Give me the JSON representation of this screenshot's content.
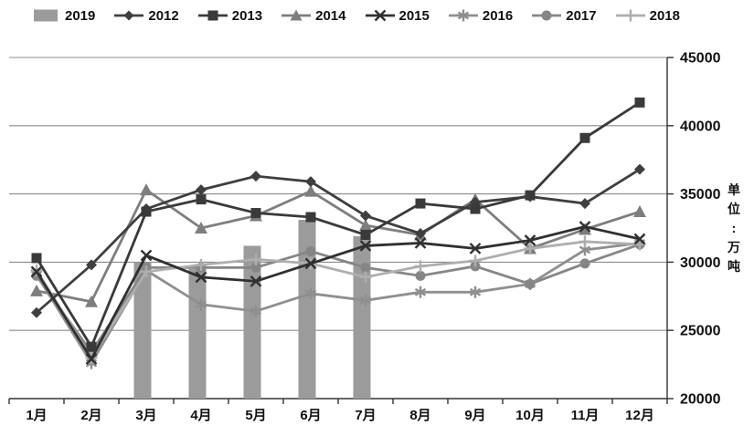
{
  "chart": {
    "legend": [
      {
        "label": "2019",
        "marker": "bar",
        "color": "#9b9b9b"
      },
      {
        "label": "2012",
        "marker": "diamond",
        "color": "#3f3f3f"
      },
      {
        "label": "2013",
        "marker": "square",
        "color": "#3a3a3a"
      },
      {
        "label": "2014",
        "marker": "triangle",
        "color": "#7e7e7e"
      },
      {
        "label": "2015",
        "marker": "x",
        "color": "#303030"
      },
      {
        "label": "2016",
        "marker": "asterisk",
        "color": "#8f8f8f"
      },
      {
        "label": "2017",
        "marker": "circle",
        "color": "#868686"
      },
      {
        "label": "2018",
        "marker": "plus",
        "color": "#aeaeae"
      }
    ],
    "y_axis": {
      "tick_labels": [
        "45000",
        "40000",
        "35000",
        "30000",
        "25000",
        "20000"
      ]
    },
    "x_axis": {
      "labels": [
        "1月",
        "2月",
        "3月",
        "4月",
        "5月",
        "6月",
        "7月",
        "8月",
        "9月",
        "10月",
        "11月",
        "12月"
      ]
    },
    "unit_label": "单位:万吨"
  },
  "chart_data": {
    "type": "bar+line",
    "title": "",
    "xlabel": "",
    "ylabel": "单位:万吨",
    "categories": [
      "1月",
      "2月",
      "3月",
      "4月",
      "5月",
      "6月",
      "7月",
      "8月",
      "9月",
      "10月",
      "11月",
      "12月"
    ],
    "ylim": [
      20000,
      45000
    ],
    "y_tick_step": 5000,
    "grid": true,
    "legend_position": "top",
    "bar_series": {
      "name": "2019",
      "color": "#9b9b9b",
      "values": [
        null,
        null,
        30000,
        29500,
        31200,
        33100,
        31900,
        null,
        null,
        null,
        null,
        null
      ]
    },
    "series": [
      {
        "name": "2012",
        "marker": "diamond",
        "color": "#3f3f3f",
        "values": [
          26300,
          29800,
          33900,
          35300,
          36300,
          35900,
          33400,
          32100,
          34400,
          34800,
          34300,
          36800
        ]
      },
      {
        "name": "2013",
        "marker": "square",
        "color": "#3a3a3a",
        "values": [
          30300,
          23800,
          33700,
          34600,
          33600,
          33300,
          32000,
          34300,
          33900,
          34900,
          39100,
          41700
        ]
      },
      {
        "name": "2014",
        "marker": "triangle",
        "color": "#7e7e7e",
        "values": [
          27900,
          27100,
          35300,
          32500,
          33400,
          35200,
          32700,
          32000,
          34600,
          31000,
          32400,
          33700
        ]
      },
      {
        "name": "2015",
        "marker": "x",
        "color": "#303030",
        "values": [
          29300,
          22900,
          30500,
          28900,
          28600,
          29900,
          31200,
          31400,
          31000,
          31600,
          32600,
          31700
        ]
      },
      {
        "name": "2016",
        "marker": "asterisk",
        "color": "#8f8f8f",
        "values": [
          29100,
          22600,
          29400,
          26900,
          26400,
          27700,
          27200,
          27800,
          27800,
          28400,
          30900,
          31400
        ]
      },
      {
        "name": "2017",
        "marker": "circle",
        "color": "#868686",
        "values": [
          29000,
          23400,
          29600,
          29600,
          29600,
          30800,
          29600,
          29000,
          29700,
          28400,
          29900,
          31300
        ]
      },
      {
        "name": "2018",
        "marker": "plus",
        "color": "#aeaeae",
        "values": [
          29400,
          23000,
          29300,
          29800,
          30200,
          29900,
          28900,
          29700,
          30100,
          31000,
          31500,
          31300
        ]
      }
    ]
  }
}
